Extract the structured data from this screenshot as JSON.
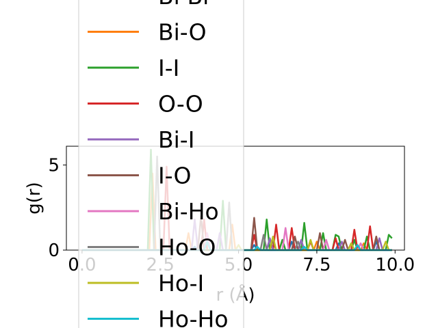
{
  "chart_data": {
    "type": "line",
    "xlabel": "r (Å)",
    "ylabel": "g(r)",
    "xlim": [
      -0.5,
      10.3
    ],
    "ylim": [
      0,
      6.1
    ],
    "xticks": [
      0.0,
      2.5,
      5.0,
      7.5,
      10.0
    ],
    "xtick_labels": [
      "0.0",
      "2.5",
      "5.0",
      "7.5",
      "10.0"
    ],
    "yticks": [
      0,
      5
    ],
    "ytick_labels": [
      "0",
      "5"
    ],
    "legend_position": "upper-center (overflowing above axes)",
    "series": [
      {
        "name": "Bi-Bi",
        "color": "#1f77b4",
        "points": [
          [
            0,
            0
          ],
          [
            3.5,
            0
          ],
          [
            3.6,
            0.2
          ],
          [
            3.7,
            0
          ],
          [
            5.4,
            0
          ],
          [
            5.5,
            0.3
          ],
          [
            5.6,
            0
          ],
          [
            6.6,
            0
          ],
          [
            6.7,
            0.5
          ],
          [
            6.8,
            0
          ],
          [
            8.1,
            0
          ],
          [
            8.2,
            0.4
          ],
          [
            8.3,
            0
          ],
          [
            9.3,
            0
          ],
          [
            9.4,
            0.5
          ],
          [
            9.5,
            0
          ],
          [
            9.9,
            0
          ]
        ]
      },
      {
        "name": "Bi-O",
        "color": "#ff7f0e",
        "points": [
          [
            0,
            0
          ],
          [
            2.15,
            0
          ],
          [
            2.25,
            4.5
          ],
          [
            2.35,
            0
          ],
          [
            3.3,
            0
          ],
          [
            3.4,
            1.0
          ],
          [
            3.5,
            0
          ],
          [
            4.7,
            0
          ],
          [
            4.8,
            1.5
          ],
          [
            4.9,
            0
          ],
          [
            6.0,
            0
          ],
          [
            6.1,
            0.6
          ],
          [
            6.2,
            0
          ],
          [
            7.4,
            0
          ],
          [
            7.5,
            0.5
          ],
          [
            7.6,
            0
          ],
          [
            8.9,
            0
          ],
          [
            9.0,
            0.4
          ],
          [
            9.1,
            0
          ],
          [
            9.9,
            0
          ]
        ]
      },
      {
        "name": "I-I",
        "color": "#2ca02c",
        "points": [
          [
            0,
            0
          ],
          [
            2.1,
            0
          ],
          [
            2.2,
            5.9
          ],
          [
            2.3,
            0
          ],
          [
            4.4,
            0
          ],
          [
            4.5,
            2.9
          ],
          [
            4.6,
            0
          ],
          [
            5.8,
            0
          ],
          [
            5.9,
            1.8
          ],
          [
            6.0,
            0
          ],
          [
            6.3,
            0
          ],
          [
            6.4,
            0.6
          ],
          [
            6.5,
            0
          ],
          [
            7.0,
            0
          ],
          [
            7.1,
            1.6
          ],
          [
            7.2,
            0
          ],
          [
            7.6,
            0
          ],
          [
            7.7,
            1.0
          ],
          [
            7.8,
            0
          ],
          [
            8.0,
            0
          ],
          [
            8.1,
            0.9
          ],
          [
            8.2,
            0.8
          ],
          [
            8.3,
            0
          ],
          [
            8.6,
            0
          ],
          [
            8.7,
            0.6
          ],
          [
            8.8,
            0
          ],
          [
            9.0,
            0
          ],
          [
            9.1,
            0.8
          ],
          [
            9.2,
            0
          ],
          [
            9.7,
            0
          ],
          [
            9.8,
            0.9
          ],
          [
            9.9,
            0.7
          ]
        ]
      },
      {
        "name": "O-O",
        "color": "#d62728",
        "points": [
          [
            0,
            0
          ],
          [
            2.6,
            0
          ],
          [
            2.7,
            4.9
          ],
          [
            2.8,
            0
          ],
          [
            3.8,
            0
          ],
          [
            3.9,
            1.8
          ],
          [
            4.0,
            0
          ],
          [
            5.4,
            0
          ],
          [
            5.5,
            0.9
          ],
          [
            5.6,
            0
          ],
          [
            6.1,
            0
          ],
          [
            6.2,
            1.5
          ],
          [
            6.3,
            0
          ],
          [
            6.6,
            0
          ],
          [
            6.7,
            1.3
          ],
          [
            6.8,
            0
          ],
          [
            7.2,
            0
          ],
          [
            7.3,
            0.5
          ],
          [
            7.4,
            0
          ],
          [
            8.0,
            0
          ],
          [
            8.1,
            0.7
          ],
          [
            8.2,
            0
          ],
          [
            8.6,
            0
          ],
          [
            8.7,
            1.2
          ],
          [
            8.8,
            0
          ],
          [
            9.1,
            0
          ],
          [
            9.2,
            1.4
          ],
          [
            9.3,
            0
          ],
          [
            9.9,
            0
          ]
        ]
      },
      {
        "name": "Bi-I",
        "color": "#9467bd",
        "points": [
          [
            0,
            0
          ],
          [
            3.5,
            0
          ],
          [
            3.6,
            1.8
          ],
          [
            3.7,
            0
          ],
          [
            4.3,
            0
          ],
          [
            4.4,
            1.0
          ],
          [
            4.5,
            0
          ],
          [
            5.9,
            0
          ],
          [
            6.0,
            0.7
          ],
          [
            6.1,
            0
          ],
          [
            6.9,
            0
          ],
          [
            7.0,
            0.6
          ],
          [
            7.1,
            0
          ],
          [
            8.2,
            0
          ],
          [
            8.3,
            0.5
          ],
          [
            8.4,
            0
          ],
          [
            9.4,
            0
          ],
          [
            9.5,
            0.7
          ],
          [
            9.6,
            0
          ],
          [
            9.9,
            0
          ]
        ]
      },
      {
        "name": "I-O",
        "color": "#8c564b",
        "points": [
          [
            0,
            0
          ],
          [
            3.7,
            0
          ],
          [
            3.8,
            2.0
          ],
          [
            3.9,
            0
          ],
          [
            5.4,
            0
          ],
          [
            5.5,
            1.9
          ],
          [
            5.6,
            0
          ],
          [
            6.0,
            0
          ],
          [
            6.1,
            0.6
          ],
          [
            6.2,
            0
          ],
          [
            6.7,
            0
          ],
          [
            6.8,
            0.8
          ],
          [
            6.9,
            0
          ],
          [
            7.5,
            0
          ],
          [
            7.6,
            1.0
          ],
          [
            7.7,
            0
          ],
          [
            8.3,
            0
          ],
          [
            8.4,
            0.6
          ],
          [
            8.5,
            0
          ],
          [
            9.3,
            0
          ],
          [
            9.4,
            0.8
          ],
          [
            9.5,
            0
          ],
          [
            9.9,
            0
          ]
        ]
      },
      {
        "name": "Bi-Ho",
        "color": "#e377c2",
        "points": [
          [
            0,
            0
          ],
          [
            3.9,
            0
          ],
          [
            4.0,
            1.0
          ],
          [
            4.1,
            0
          ],
          [
            6.4,
            0
          ],
          [
            6.5,
            1.3
          ],
          [
            6.6,
            0
          ],
          [
            7.7,
            0
          ],
          [
            7.8,
            0.6
          ],
          [
            7.9,
            0
          ],
          [
            8.8,
            0
          ],
          [
            8.9,
            0.4
          ],
          [
            9.0,
            0
          ],
          [
            9.9,
            0
          ]
        ]
      },
      {
        "name": "Ho-O",
        "color": "#7f7f7f",
        "points": [
          [
            0,
            0
          ],
          [
            2.3,
            0
          ],
          [
            2.4,
            5.5
          ],
          [
            2.5,
            0
          ],
          [
            4.6,
            0
          ],
          [
            4.7,
            2.8
          ],
          [
            4.8,
            0
          ],
          [
            5.7,
            0
          ],
          [
            5.8,
            0.9
          ],
          [
            5.9,
            0
          ],
          [
            6.8,
            0
          ],
          [
            6.9,
            0.5
          ],
          [
            7.0,
            0
          ],
          [
            8.5,
            0
          ],
          [
            8.6,
            0.4
          ],
          [
            8.7,
            0
          ],
          [
            9.9,
            0
          ]
        ]
      },
      {
        "name": "Ho-I",
        "color": "#bcbd22",
        "points": [
          [
            0,
            0
          ],
          [
            4.9,
            0
          ],
          [
            5.0,
            0.3
          ],
          [
            5.1,
            0
          ],
          [
            6.0,
            0
          ],
          [
            6.1,
            0.8
          ],
          [
            6.2,
            0
          ],
          [
            7.2,
            0
          ],
          [
            7.3,
            0.6
          ],
          [
            7.4,
            0
          ],
          [
            8.5,
            0
          ],
          [
            8.6,
            0.4
          ],
          [
            8.7,
            0
          ],
          [
            9.6,
            0
          ],
          [
            9.7,
            0.5
          ],
          [
            9.8,
            0
          ],
          [
            9.9,
            0
          ]
        ]
      },
      {
        "name": "Ho-Ho",
        "color": "#17becf",
        "points": [
          [
            0,
            0
          ],
          [
            3.9,
            0
          ],
          [
            4.0,
            0.5
          ],
          [
            4.1,
            0
          ],
          [
            5.5,
            0
          ],
          [
            5.6,
            0.2
          ],
          [
            5.7,
            0
          ],
          [
            7.0,
            0
          ],
          [
            7.1,
            0.2
          ],
          [
            7.2,
            0
          ],
          [
            8.7,
            0
          ],
          [
            8.8,
            0.3
          ],
          [
            8.9,
            0
          ],
          [
            9.9,
            0
          ]
        ]
      }
    ]
  }
}
